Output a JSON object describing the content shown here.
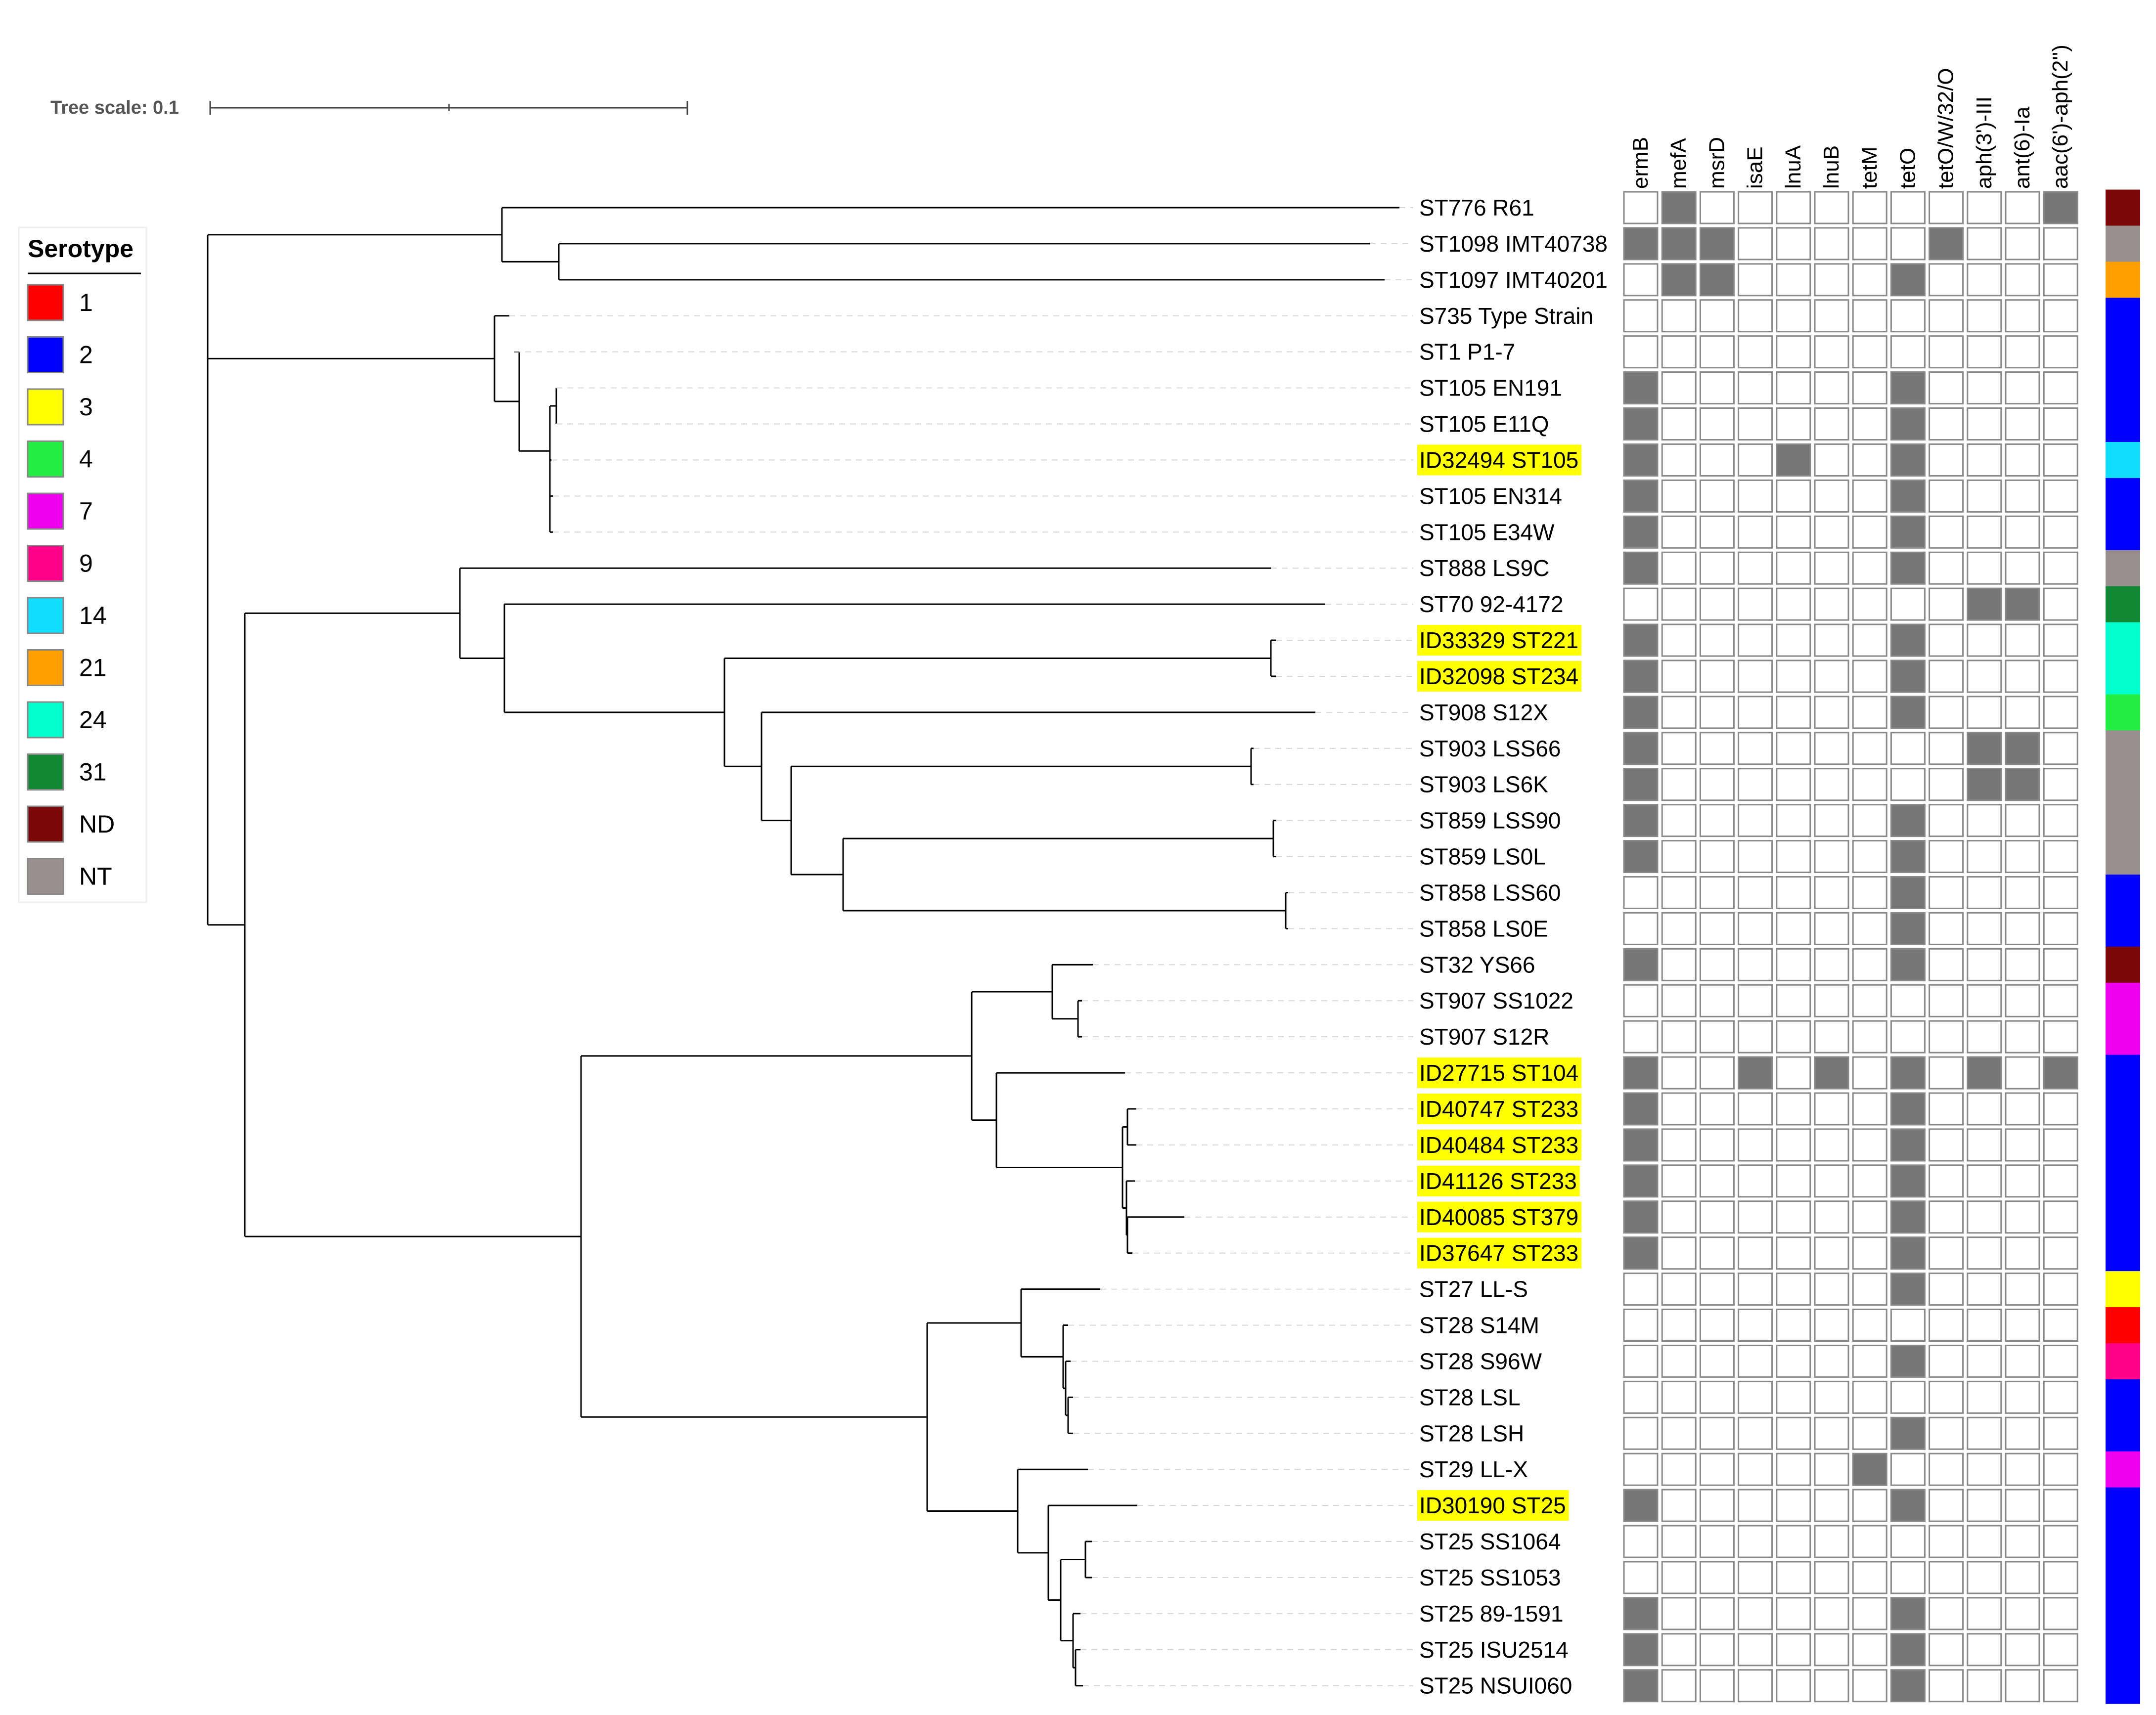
{
  "tree_scale": {
    "label": "Tree scale: 0.1"
  },
  "legend": {
    "title": "Serotype",
    "items": [
      {
        "label": "1",
        "color": "#ff0000"
      },
      {
        "label": "2",
        "color": "#0000ff"
      },
      {
        "label": "3",
        "color": "#ffff00"
      },
      {
        "label": "4",
        "color": "#22ee44"
      },
      {
        "label": "7",
        "color": "#ee00ee"
      },
      {
        "label": "9",
        "color": "#ff0088"
      },
      {
        "label": "14",
        "color": "#11ddff"
      },
      {
        "label": "21",
        "color": "#ffa000"
      },
      {
        "label": "24",
        "color": "#00ffcc"
      },
      {
        "label": "31",
        "color": "#118833"
      },
      {
        "label": "ND",
        "color": "#7a0808"
      },
      {
        "label": "NT",
        "color": "#9a8f8f"
      }
    ]
  },
  "genes": [
    "ermB",
    "mefA",
    "msrD",
    "isaE",
    "lnuA",
    "lnuB",
    "tetM",
    "tetO",
    "tetO/W/32/O",
    "aph(3')-III",
    "ant(6)-Ia",
    "aac(6')-aph(2'')"
  ],
  "taxa": [
    {
      "label": "ST776 R61",
      "highlight": false,
      "serotype": "ND",
      "genes": [
        0,
        1,
        0,
        0,
        0,
        0,
        0,
        0,
        0,
        0,
        0,
        1
      ]
    },
    {
      "label": "ST1098 IMT40738",
      "highlight": false,
      "serotype": "NT",
      "genes": [
        1,
        1,
        1,
        0,
        0,
        0,
        0,
        0,
        1,
        0,
        0,
        0
      ]
    },
    {
      "label": "ST1097 IMT40201",
      "highlight": false,
      "serotype": "21",
      "genes": [
        0,
        1,
        1,
        0,
        0,
        0,
        0,
        1,
        0,
        0,
        0,
        0
      ]
    },
    {
      "label": "S735 Type Strain",
      "highlight": false,
      "serotype": "2",
      "genes": [
        0,
        0,
        0,
        0,
        0,
        0,
        0,
        0,
        0,
        0,
        0,
        0
      ]
    },
    {
      "label": "ST1 P1-7",
      "highlight": false,
      "serotype": "2",
      "genes": [
        0,
        0,
        0,
        0,
        0,
        0,
        0,
        0,
        0,
        0,
        0,
        0
      ]
    },
    {
      "label": "ST105 EN191",
      "highlight": false,
      "serotype": "2",
      "genes": [
        1,
        0,
        0,
        0,
        0,
        0,
        0,
        1,
        0,
        0,
        0,
        0
      ]
    },
    {
      "label": "ST105 E11Q",
      "highlight": false,
      "serotype": "2",
      "genes": [
        1,
        0,
        0,
        0,
        0,
        0,
        0,
        1,
        0,
        0,
        0,
        0
      ]
    },
    {
      "label": "ID32494 ST105",
      "highlight": true,
      "serotype": "14",
      "genes": [
        1,
        0,
        0,
        0,
        1,
        0,
        0,
        1,
        0,
        0,
        0,
        0
      ]
    },
    {
      "label": "ST105 EN314",
      "highlight": false,
      "serotype": "2",
      "genes": [
        1,
        0,
        0,
        0,
        0,
        0,
        0,
        1,
        0,
        0,
        0,
        0
      ]
    },
    {
      "label": "ST105 E34W",
      "highlight": false,
      "serotype": "2",
      "genes": [
        1,
        0,
        0,
        0,
        0,
        0,
        0,
        1,
        0,
        0,
        0,
        0
      ]
    },
    {
      "label": "ST888 LS9C",
      "highlight": false,
      "serotype": "NT",
      "genes": [
        1,
        0,
        0,
        0,
        0,
        0,
        0,
        1,
        0,
        0,
        0,
        0
      ]
    },
    {
      "label": "ST70 92-4172",
      "highlight": false,
      "serotype": "31",
      "genes": [
        0,
        0,
        0,
        0,
        0,
        0,
        0,
        0,
        0,
        1,
        1,
        0
      ]
    },
    {
      "label": "ID33329 ST221",
      "highlight": true,
      "serotype": "24",
      "genes": [
        1,
        0,
        0,
        0,
        0,
        0,
        0,
        1,
        0,
        0,
        0,
        0
      ]
    },
    {
      "label": "ID32098 ST234",
      "highlight": true,
      "serotype": "24",
      "genes": [
        1,
        0,
        0,
        0,
        0,
        0,
        0,
        1,
        0,
        0,
        0,
        0
      ]
    },
    {
      "label": "ST908 S12X",
      "highlight": false,
      "serotype": "4",
      "genes": [
        1,
        0,
        0,
        0,
        0,
        0,
        0,
        1,
        0,
        0,
        0,
        0
      ]
    },
    {
      "label": "ST903 LSS66",
      "highlight": false,
      "serotype": "NT",
      "genes": [
        1,
        0,
        0,
        0,
        0,
        0,
        0,
        0,
        0,
        1,
        1,
        0
      ]
    },
    {
      "label": "ST903 LS6K",
      "highlight": false,
      "serotype": "NT",
      "genes": [
        1,
        0,
        0,
        0,
        0,
        0,
        0,
        0,
        0,
        1,
        1,
        0
      ]
    },
    {
      "label": "ST859 LSS90",
      "highlight": false,
      "serotype": "NT",
      "genes": [
        1,
        0,
        0,
        0,
        0,
        0,
        0,
        1,
        0,
        0,
        0,
        0
      ]
    },
    {
      "label": "ST859 LS0L",
      "highlight": false,
      "serotype": "NT",
      "genes": [
        1,
        0,
        0,
        0,
        0,
        0,
        0,
        1,
        0,
        0,
        0,
        0
      ]
    },
    {
      "label": "ST858 LSS60",
      "highlight": false,
      "serotype": "2",
      "genes": [
        0,
        0,
        0,
        0,
        0,
        0,
        0,
        1,
        0,
        0,
        0,
        0
      ]
    },
    {
      "label": "ST858 LS0E",
      "highlight": false,
      "serotype": "2",
      "genes": [
        0,
        0,
        0,
        0,
        0,
        0,
        0,
        1,
        0,
        0,
        0,
        0
      ]
    },
    {
      "label": "ST32 YS66",
      "highlight": false,
      "serotype": "ND",
      "genes": [
        1,
        0,
        0,
        0,
        0,
        0,
        0,
        1,
        0,
        0,
        0,
        0
      ]
    },
    {
      "label": "ST907 SS1022",
      "highlight": false,
      "serotype": "7",
      "genes": [
        0,
        0,
        0,
        0,
        0,
        0,
        0,
        0,
        0,
        0,
        0,
        0
      ]
    },
    {
      "label": "ST907 S12R",
      "highlight": false,
      "serotype": "7",
      "genes": [
        0,
        0,
        0,
        0,
        0,
        0,
        0,
        0,
        0,
        0,
        0,
        0
      ]
    },
    {
      "label": "ID27715 ST104",
      "highlight": true,
      "serotype": "2",
      "genes": [
        1,
        0,
        0,
        1,
        0,
        1,
        0,
        1,
        0,
        1,
        0,
        1
      ]
    },
    {
      "label": "ID40747 ST233",
      "highlight": true,
      "serotype": "2",
      "genes": [
        1,
        0,
        0,
        0,
        0,
        0,
        0,
        1,
        0,
        0,
        0,
        0
      ]
    },
    {
      "label": "ID40484 ST233",
      "highlight": true,
      "serotype": "2",
      "genes": [
        1,
        0,
        0,
        0,
        0,
        0,
        0,
        1,
        0,
        0,
        0,
        0
      ]
    },
    {
      "label": "ID41126 ST233",
      "highlight": true,
      "serotype": "2",
      "genes": [
        1,
        0,
        0,
        0,
        0,
        0,
        0,
        1,
        0,
        0,
        0,
        0
      ]
    },
    {
      "label": "ID40085 ST379",
      "highlight": true,
      "serotype": "2",
      "genes": [
        1,
        0,
        0,
        0,
        0,
        0,
        0,
        1,
        0,
        0,
        0,
        0
      ]
    },
    {
      "label": "ID37647 ST233",
      "highlight": true,
      "serotype": "2",
      "genes": [
        1,
        0,
        0,
        0,
        0,
        0,
        0,
        1,
        0,
        0,
        0,
        0
      ]
    },
    {
      "label": "ST27 LL-S",
      "highlight": false,
      "serotype": "3",
      "genes": [
        0,
        0,
        0,
        0,
        0,
        0,
        0,
        1,
        0,
        0,
        0,
        0
      ]
    },
    {
      "label": "ST28 S14M",
      "highlight": false,
      "serotype": "1",
      "genes": [
        0,
        0,
        0,
        0,
        0,
        0,
        0,
        0,
        0,
        0,
        0,
        0
      ]
    },
    {
      "label": "ST28 S96W",
      "highlight": false,
      "serotype": "9",
      "genes": [
        0,
        0,
        0,
        0,
        0,
        0,
        0,
        1,
        0,
        0,
        0,
        0
      ]
    },
    {
      "label": "ST28 LSL",
      "highlight": false,
      "serotype": "2",
      "genes": [
        0,
        0,
        0,
        0,
        0,
        0,
        0,
        0,
        0,
        0,
        0,
        0
      ]
    },
    {
      "label": "ST28 LSH",
      "highlight": false,
      "serotype": "2",
      "genes": [
        0,
        0,
        0,
        0,
        0,
        0,
        0,
        1,
        0,
        0,
        0,
        0
      ]
    },
    {
      "label": "ST29 LL-X",
      "highlight": false,
      "serotype": "7",
      "genes": [
        0,
        0,
        0,
        0,
        0,
        0,
        1,
        0,
        0,
        0,
        0,
        0
      ]
    },
    {
      "label": "ID30190 ST25",
      "highlight": true,
      "serotype": "2",
      "genes": [
        1,
        0,
        0,
        0,
        0,
        0,
        0,
        1,
        0,
        0,
        0,
        0
      ]
    },
    {
      "label": "ST25 SS1064",
      "highlight": false,
      "serotype": "2",
      "genes": [
        0,
        0,
        0,
        0,
        0,
        0,
        0,
        0,
        0,
        0,
        0,
        0
      ]
    },
    {
      "label": "ST25 SS1053",
      "highlight": false,
      "serotype": "2",
      "genes": [
        0,
        0,
        0,
        0,
        0,
        0,
        0,
        0,
        0,
        0,
        0,
        0
      ]
    },
    {
      "label": "ST25 89-1591",
      "highlight": false,
      "serotype": "2",
      "genes": [
        1,
        0,
        0,
        0,
        0,
        0,
        0,
        1,
        0,
        0,
        0,
        0
      ]
    },
    {
      "label": "ST25 ISU2514",
      "highlight": false,
      "serotype": "2",
      "genes": [
        1,
        0,
        0,
        0,
        0,
        0,
        0,
        1,
        0,
        0,
        0,
        0
      ]
    },
    {
      "label": "ST25 NSUI060",
      "highlight": false,
      "serotype": "2",
      "genes": [
        1,
        0,
        0,
        0,
        0,
        0,
        0,
        1,
        0,
        0,
        0,
        0
      ]
    }
  ],
  "colors": {
    "present": "#777777",
    "absent": "#ffffff",
    "highlight": "#ffff00",
    "branch": "#000000"
  }
}
